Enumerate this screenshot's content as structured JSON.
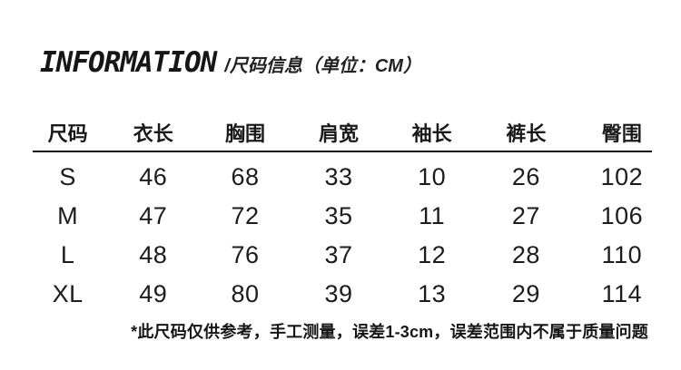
{
  "header": {
    "title": "INFORMATION",
    "subtitle": "/尺码信息（单位：CM）"
  },
  "size_table": {
    "columns": [
      "尺码",
      "衣长",
      "胸围",
      "肩宽",
      "袖长",
      "裤长",
      "臀围"
    ],
    "rows": [
      {
        "size": "S",
        "values": [
          "46",
          "68",
          "33",
          "10",
          "26",
          "102"
        ]
      },
      {
        "size": "M",
        "values": [
          "47",
          "72",
          "35",
          "11",
          "27",
          "106"
        ]
      },
      {
        "size": "L",
        "values": [
          "48",
          "76",
          "37",
          "12",
          "28",
          "110"
        ]
      },
      {
        "size": "XL",
        "values": [
          "49",
          "80",
          "39",
          "13",
          "29",
          "114"
        ]
      }
    ]
  },
  "footnote": "*此尺码仅供参考，手工测量，误差1-3cm，误差范围内不属于质量问题",
  "colors": {
    "background": "#ffffff",
    "text": "#1a1a1a",
    "rule": "#111111"
  }
}
